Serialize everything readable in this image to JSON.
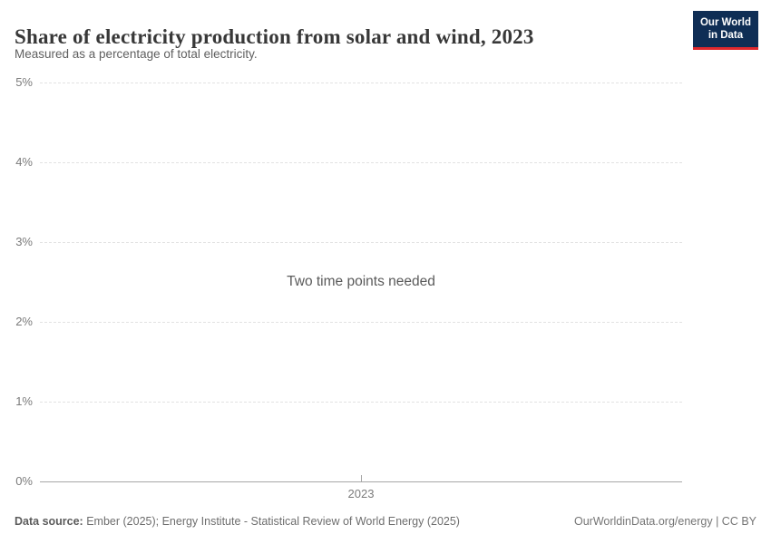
{
  "header": {
    "title": "Share of electricity production from solar and wind, 2023",
    "subtitle": "Measured as a percentage of total electricity.",
    "logo": {
      "line1": "Our World",
      "line2": "in Data",
      "background_color": "#0f2e55",
      "accent_color": "#e0282d"
    }
  },
  "chart_data": {
    "type": "line",
    "title": "Share of electricity production from solar and wind, 2023",
    "xlabel": "",
    "ylabel": "",
    "ylim": [
      0,
      5
    ],
    "yticks": [
      {
        "value": 0,
        "label": "0%"
      },
      {
        "value": 1,
        "label": "1%"
      },
      {
        "value": 2,
        "label": "2%"
      },
      {
        "value": 3,
        "label": "3%"
      },
      {
        "value": 4,
        "label": "4%"
      },
      {
        "value": 5,
        "label": "5%"
      }
    ],
    "xticks": [
      {
        "value": 2023,
        "label": "2023"
      }
    ],
    "series": [],
    "empty_state_message": "Two time points needed",
    "grid": true,
    "legend": "none",
    "gridline_color": "#e2e2e2",
    "axis_color": "#a6a6a6"
  },
  "footer": {
    "source_label": "Data source:",
    "source_text": " Ember (2025); Energy Institute - Statistical Review of World Energy (2025)",
    "rights": "OurWorldinData.org/energy | CC BY"
  }
}
